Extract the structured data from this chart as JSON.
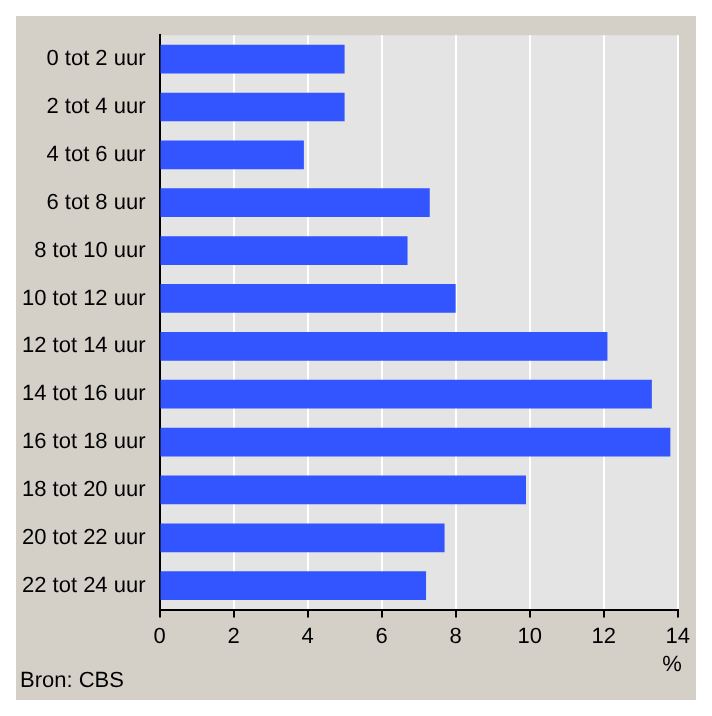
{
  "chart_data": {
    "type": "bar",
    "orientation": "horizontal",
    "categories": [
      "0 tot 2 uur",
      "2 tot 4 uur",
      "4 tot 6 uur",
      "6 tot 8 uur",
      "8 tot 10 uur",
      "10 tot 12 uur",
      "12 tot 14 uur",
      "14 tot 16 uur",
      "16 tot 18 uur",
      "18 tot 20 uur",
      "20 tot 22 uur",
      "22 tot 24 uur"
    ],
    "values": [
      5.0,
      5.0,
      3.9,
      7.3,
      6.7,
      8.0,
      12.1,
      13.3,
      13.8,
      9.9,
      7.7,
      7.2
    ],
    "color": "#3355ff",
    "xlim": [
      0,
      14
    ],
    "xticks": [
      0,
      2,
      4,
      6,
      8,
      10,
      12,
      14
    ],
    "xlabel": "%",
    "grid": "x",
    "legend": false,
    "annotations": [
      "Bron: CBS"
    ]
  }
}
